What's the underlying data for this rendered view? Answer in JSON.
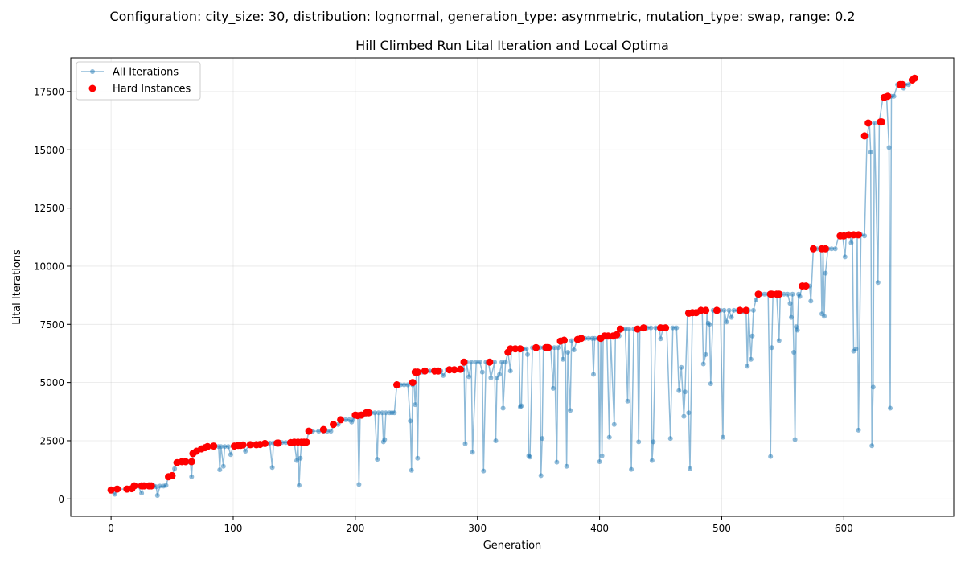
{
  "figure": {
    "suptitle": "Configuration: city_size: 30, distribution: lognormal, generation_type: asymmetric, mutation_type: swap, range: 0.2"
  },
  "chart_data": {
    "type": "line",
    "title": "Hill Climbed Run Lital Iteration and Local Optima",
    "xlabel": "Generation",
    "ylabel": "Lital Iterations",
    "xlim": [
      -33,
      690
    ],
    "ylim": [
      -750,
      18950
    ],
    "xticks": [
      0,
      100,
      200,
      300,
      400,
      500,
      600
    ],
    "yticks": [
      0,
      2500,
      5000,
      7500,
      10000,
      12500,
      15000,
      17500
    ],
    "grid": true,
    "legend_placement": "top-left",
    "legend": [
      {
        "name": "All Iterations",
        "color": "#1f77b4",
        "marker": "circle",
        "line": true
      },
      {
        "name": "Hard Instances",
        "color": "#ff0000",
        "marker": "circle",
        "line": false
      }
    ],
    "anchors": [
      [
        0,
        380
      ],
      [
        3,
        200
      ],
      [
        5,
        420
      ],
      [
        12,
        420
      ],
      [
        15,
        440
      ],
      [
        18,
        560
      ],
      [
        22,
        560
      ],
      [
        25,
        250
      ],
      [
        26,
        560
      ],
      [
        28,
        560
      ],
      [
        30,
        560
      ],
      [
        32,
        560
      ],
      [
        35,
        560
      ],
      [
        37,
        520
      ],
      [
        38,
        150
      ],
      [
        40,
        550
      ],
      [
        43,
        550
      ],
      [
        45,
        580
      ],
      [
        47,
        950
      ],
      [
        50,
        1000
      ],
      [
        52,
        1300
      ],
      [
        53,
        1560
      ],
      [
        57,
        1600
      ],
      [
        60,
        1600
      ],
      [
        64,
        1600
      ],
      [
        65,
        1560
      ],
      [
        66,
        950
      ],
      [
        67,
        1950
      ],
      [
        70,
        2050
      ],
      [
        73,
        2150
      ],
      [
        77,
        2200
      ],
      [
        80,
        2250
      ],
      [
        85,
        2280
      ],
      [
        88,
        2250
      ],
      [
        89,
        1250
      ],
      [
        90,
        2250
      ],
      [
        92,
        1400
      ],
      [
        93,
        2250
      ],
      [
        96,
        2250
      ],
      [
        98,
        1900
      ],
      [
        100,
        2270
      ],
      [
        103,
        2270
      ],
      [
        106,
        2300
      ],
      [
        109,
        2300
      ],
      [
        110,
        2050
      ],
      [
        113,
        2330
      ],
      [
        116,
        2330
      ],
      [
        120,
        2330
      ],
      [
        124,
        2340
      ],
      [
        126,
        2360
      ],
      [
        130,
        2400
      ],
      [
        132,
        1350
      ],
      [
        133,
        2400
      ],
      [
        136,
        2400
      ],
      [
        140,
        2420
      ],
      [
        143,
        2420
      ],
      [
        146,
        2420
      ],
      [
        150,
        2440
      ],
      [
        152,
        1650
      ],
      [
        153,
        2440
      ],
      [
        154,
        580
      ],
      [
        155,
        1750
      ],
      [
        156,
        2440
      ],
      [
        158,
        2440
      ],
      [
        160,
        2440
      ],
      [
        162,
        2910
      ],
      [
        165,
        2910
      ],
      [
        170,
        2910
      ],
      [
        174,
        2910
      ],
      [
        177,
        2910
      ],
      [
        180,
        2910
      ],
      [
        183,
        3200
      ],
      [
        186,
        3200
      ],
      [
        189,
        3400
      ],
      [
        192,
        3400
      ],
      [
        195,
        3400
      ],
      [
        197,
        3300
      ],
      [
        198,
        3400
      ],
      [
        200,
        3600
      ],
      [
        202,
        3600
      ],
      [
        203,
        620
      ],
      [
        204,
        3600
      ],
      [
        207,
        3600
      ],
      [
        210,
        3700
      ],
      [
        213,
        3700
      ],
      [
        216,
        3700
      ],
      [
        218,
        1700
      ],
      [
        219,
        3700
      ],
      [
        222,
        3700
      ],
      [
        223,
        2450
      ],
      [
        224,
        2550
      ],
      [
        225,
        3700
      ],
      [
        228,
        3700
      ],
      [
        230,
        3700
      ],
      [
        232,
        3700
      ],
      [
        234,
        4900
      ],
      [
        237,
        4900
      ],
      [
        240,
        4900
      ],
      [
        243,
        4900
      ],
      [
        245,
        3350
      ],
      [
        246,
        1230
      ],
      [
        247,
        4900
      ],
      [
        248,
        5000
      ],
      [
        249,
        4050
      ],
      [
        250,
        5450
      ],
      [
        251,
        1750
      ],
      [
        252,
        5450
      ],
      [
        255,
        5450
      ],
      [
        258,
        5500
      ],
      [
        261,
        5500
      ],
      [
        264,
        5500
      ],
      [
        267,
        5500
      ],
      [
        270,
        5500
      ],
      [
        272,
        5300
      ],
      [
        275,
        5550
      ],
      [
        278,
        5550
      ],
      [
        281,
        5550
      ],
      [
        285,
        5550
      ],
      [
        288,
        5550
      ],
      [
        289,
        5880
      ],
      [
        290,
        2370
      ],
      [
        291,
        5880
      ],
      [
        293,
        5250
      ],
      [
        295,
        5880
      ],
      [
        296,
        2000
      ],
      [
        299,
        5880
      ],
      [
        302,
        5880
      ],
      [
        304,
        5450
      ],
      [
        305,
        1200
      ],
      [
        307,
        5880
      ],
      [
        309,
        5880
      ],
      [
        311,
        5200
      ],
      [
        314,
        5880
      ],
      [
        315,
        2500
      ],
      [
        316,
        5200
      ],
      [
        318,
        5350
      ],
      [
        320,
        5880
      ],
      [
        321,
        3900
      ],
      [
        323,
        5880
      ],
      [
        325,
        6300
      ],
      [
        327,
        5500
      ],
      [
        328,
        6450
      ],
      [
        331,
        6450
      ],
      [
        334,
        6450
      ],
      [
        335,
        3950
      ],
      [
        336,
        4000
      ],
      [
        337,
        6450
      ],
      [
        340,
        6450
      ],
      [
        341,
        6200
      ],
      [
        342,
        1850
      ],
      [
        343,
        1800
      ],
      [
        345,
        6500
      ],
      [
        348,
        6500
      ],
      [
        351,
        6500
      ],
      [
        352,
        1000
      ],
      [
        353,
        2600
      ],
      [
        354,
        6500
      ],
      [
        357,
        6500
      ],
      [
        360,
        6500
      ],
      [
        362,
        4750
      ],
      [
        363,
        6500
      ],
      [
        365,
        1580
      ],
      [
        366,
        6500
      ],
      [
        369,
        6800
      ],
      [
        370,
        6000
      ],
      [
        372,
        6800
      ],
      [
        373,
        1400
      ],
      [
        374,
        6300
      ],
      [
        376,
        3800
      ],
      [
        377,
        6800
      ],
      [
        379,
        6400
      ],
      [
        382,
        6900
      ],
      [
        385,
        6900
      ],
      [
        388,
        6900
      ],
      [
        391,
        6900
      ],
      [
        394,
        6900
      ],
      [
        395,
        5350
      ],
      [
        396,
        6900
      ],
      [
        399,
        6900
      ],
      [
        400,
        1600
      ],
      [
        401,
        6900
      ],
      [
        402,
        1850
      ],
      [
        403,
        7000
      ],
      [
        406,
        7000
      ],
      [
        408,
        2650
      ],
      [
        409,
        7000
      ],
      [
        412,
        3200
      ],
      [
        413,
        7000
      ],
      [
        416,
        7000
      ],
      [
        418,
        7300
      ],
      [
        421,
        7300
      ],
      [
        423,
        4200
      ],
      [
        424,
        7300
      ],
      [
        426,
        1270
      ],
      [
        428,
        7300
      ],
      [
        431,
        7300
      ],
      [
        432,
        2450
      ],
      [
        433,
        7300
      ],
      [
        436,
        7350
      ],
      [
        439,
        7350
      ],
      [
        442,
        7350
      ],
      [
        443,
        1650
      ],
      [
        444,
        2450
      ],
      [
        446,
        7350
      ],
      [
        449,
        7350
      ],
      [
        450,
        6880
      ],
      [
        452,
        7350
      ],
      [
        455,
        7350
      ],
      [
        458,
        2600
      ],
      [
        460,
        7350
      ],
      [
        463,
        7350
      ],
      [
        465,
        4650
      ],
      [
        467,
        5650
      ],
      [
        469,
        3550
      ],
      [
        470,
        4600
      ],
      [
        472,
        8000
      ],
      [
        473,
        3700
      ],
      [
        474,
        1300
      ],
      [
        476,
        8000
      ],
      [
        479,
        8000
      ],
      [
        481,
        8000
      ],
      [
        484,
        8100
      ],
      [
        485,
        5800
      ],
      [
        487,
        6200
      ],
      [
        488,
        8100
      ],
      [
        489,
        7550
      ],
      [
        490,
        7500
      ],
      [
        491,
        4950
      ],
      [
        493,
        8100
      ],
      [
        496,
        8100
      ],
      [
        499,
        8100
      ],
      [
        501,
        2650
      ],
      [
        502,
        8100
      ],
      [
        504,
        7600
      ],
      [
        506,
        8100
      ],
      [
        508,
        7800
      ],
      [
        510,
        8100
      ],
      [
        513,
        8100
      ],
      [
        516,
        8100
      ],
      [
        517,
        8050
      ],
      [
        520,
        8100
      ],
      [
        521,
        5700
      ],
      [
        522,
        8100
      ],
      [
        524,
        6000
      ],
      [
        525,
        7000
      ],
      [
        526,
        8100
      ],
      [
        528,
        8550
      ],
      [
        529,
        8800
      ],
      [
        532,
        8800
      ],
      [
        535,
        8800
      ],
      [
        538,
        8800
      ],
      [
        540,
        1820
      ],
      [
        541,
        6500
      ],
      [
        542,
        8800
      ],
      [
        545,
        8800
      ],
      [
        547,
        6800
      ],
      [
        548,
        8800
      ],
      [
        551,
        8800
      ],
      [
        554,
        8800
      ],
      [
        556,
        8400
      ],
      [
        557,
        7800
      ],
      [
        558,
        8800
      ],
      [
        559,
        6300
      ],
      [
        560,
        2550
      ],
      [
        561,
        7400
      ],
      [
        562,
        7250
      ],
      [
        563,
        8800
      ],
      [
        564,
        8700
      ],
      [
        566,
        9150
      ],
      [
        569,
        9150
      ],
      [
        572,
        9150
      ],
      [
        573,
        8500
      ],
      [
        575,
        10750
      ],
      [
        578,
        10750
      ],
      [
        581,
        10750
      ],
      [
        582,
        7950
      ],
      [
        583,
        10750
      ],
      [
        584,
        7850
      ],
      [
        585,
        9700
      ],
      [
        587,
        10750
      ],
      [
        590,
        10750
      ],
      [
        593,
        10750
      ],
      [
        596,
        11300
      ],
      [
        599,
        11300
      ],
      [
        601,
        10400
      ],
      [
        602,
        11350
      ],
      [
        605,
        11350
      ],
      [
        606,
        11000
      ],
      [
        607,
        11350
      ],
      [
        608,
        6350
      ],
      [
        610,
        6450
      ],
      [
        611,
        11350
      ],
      [
        612,
        2950
      ],
      [
        614,
        11350
      ],
      [
        617,
        11300
      ],
      [
        619,
        15600
      ],
      [
        621,
        16150
      ],
      [
        622,
        14900
      ],
      [
        623,
        2280
      ],
      [
        624,
        4800
      ],
      [
        625,
        16150
      ],
      [
        628,
        9300
      ],
      [
        629,
        16200
      ],
      [
        632,
        17250
      ],
      [
        635,
        17300
      ],
      [
        637,
        15100
      ],
      [
        638,
        3900
      ],
      [
        639,
        17300
      ],
      [
        641,
        17300
      ],
      [
        644,
        17800
      ],
      [
        647,
        17800
      ],
      [
        649,
        17650
      ],
      [
        650,
        17800
      ],
      [
        653,
        17800
      ],
      [
        655,
        18000
      ],
      [
        657,
        18080
      ]
    ],
    "hard_instances": [
      [
        0,
        380
      ],
      [
        5,
        420
      ],
      [
        13,
        420
      ],
      [
        17,
        440
      ],
      [
        19,
        560
      ],
      [
        25,
        560
      ],
      [
        27,
        560
      ],
      [
        31,
        560
      ],
      [
        33,
        560
      ],
      [
        47,
        950
      ],
      [
        50,
        1000
      ],
      [
        54,
        1560
      ],
      [
        58,
        1600
      ],
      [
        61,
        1600
      ],
      [
        66,
        1600
      ],
      [
        67,
        1950
      ],
      [
        70,
        2050
      ],
      [
        74,
        2150
      ],
      [
        77,
        2200
      ],
      [
        79,
        2250
      ],
      [
        84,
        2270
      ],
      [
        101,
        2270
      ],
      [
        104,
        2300
      ],
      [
        106,
        2300
      ],
      [
        108,
        2320
      ],
      [
        114,
        2330
      ],
      [
        119,
        2330
      ],
      [
        122,
        2340
      ],
      [
        126,
        2380
      ],
      [
        136,
        2400
      ],
      [
        137,
        2400
      ],
      [
        147,
        2420
      ],
      [
        150,
        2440
      ],
      [
        153,
        2440
      ],
      [
        156,
        2440
      ],
      [
        158,
        2440
      ],
      [
        160,
        2440
      ],
      [
        162,
        2910
      ],
      [
        174,
        2980
      ],
      [
        182,
        3200
      ],
      [
        188,
        3400
      ],
      [
        200,
        3600
      ],
      [
        202,
        3580
      ],
      [
        205,
        3600
      ],
      [
        209,
        3700
      ],
      [
        211,
        3700
      ],
      [
        234,
        4900
      ],
      [
        247,
        5000
      ],
      [
        249,
        5450
      ],
      [
        251,
        5450
      ],
      [
        257,
        5500
      ],
      [
        265,
        5500
      ],
      [
        268,
        5500
      ],
      [
        277,
        5550
      ],
      [
        281,
        5550
      ],
      [
        286,
        5570
      ],
      [
        289,
        5880
      ],
      [
        310,
        5880
      ],
      [
        325,
        6300
      ],
      [
        327,
        6450
      ],
      [
        331,
        6450
      ],
      [
        335,
        6450
      ],
      [
        348,
        6500
      ],
      [
        356,
        6500
      ],
      [
        357,
        6500
      ],
      [
        358,
        6500
      ],
      [
        368,
        6780
      ],
      [
        371,
        6820
      ],
      [
        382,
        6850
      ],
      [
        385,
        6900
      ],
      [
        401,
        6900
      ],
      [
        404,
        7000
      ],
      [
        407,
        7000
      ],
      [
        411,
        7000
      ],
      [
        414,
        7050
      ],
      [
        417,
        7300
      ],
      [
        431,
        7300
      ],
      [
        436,
        7350
      ],
      [
        450,
        7350
      ],
      [
        454,
        7350
      ],
      [
        473,
        7980
      ],
      [
        476,
        8000
      ],
      [
        479,
        8000
      ],
      [
        483,
        8100
      ],
      [
        487,
        8100
      ],
      [
        496,
        8100
      ],
      [
        515,
        8100
      ],
      [
        520,
        8100
      ],
      [
        530,
        8800
      ],
      [
        540,
        8800
      ],
      [
        541,
        8800
      ],
      [
        545,
        8800
      ],
      [
        547,
        8800
      ],
      [
        566,
        9150
      ],
      [
        569,
        9150
      ],
      [
        575,
        10750
      ],
      [
        582,
        10750
      ],
      [
        585,
        10750
      ],
      [
        597,
        11300
      ],
      [
        600,
        11300
      ],
      [
        604,
        11350
      ],
      [
        608,
        11350
      ],
      [
        612,
        11350
      ],
      [
        617,
        15600
      ],
      [
        620,
        16150
      ],
      [
        630,
        16200
      ],
      [
        631,
        16200
      ],
      [
        633,
        17250
      ],
      [
        636,
        17300
      ],
      [
        646,
        17800
      ],
      [
        648,
        17800
      ],
      [
        656,
        18000
      ],
      [
        658,
        18080
      ]
    ]
  }
}
